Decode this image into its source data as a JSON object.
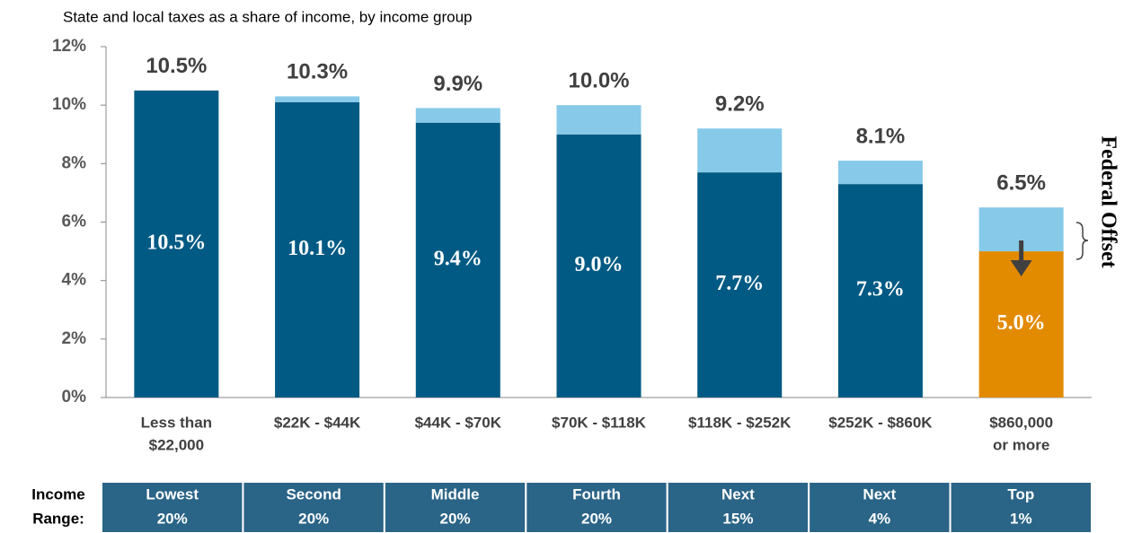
{
  "chart_data": {
    "type": "stacked_bar",
    "title": "State and local taxes as a share of income, by income group",
    "categories": [
      [
        "Less than",
        "$22,000"
      ],
      [
        "$22K - $44K"
      ],
      [
        "$44K - $70K"
      ],
      [
        "$70K - $118K"
      ],
      [
        "$118K - $252K"
      ],
      [
        "$252K - $860K"
      ],
      [
        "$860,000",
        "or more"
      ]
    ],
    "series": [
      {
        "colors": [
          "#005a84",
          "#005a84",
          "#005a84",
          "#005a84",
          "#005a84",
          "#005a84",
          "#e38b00"
        ],
        "values": [
          10.5,
          10.1,
          9.4,
          9.0,
          7.7,
          7.3,
          5.0
        ],
        "value_labels": [
          "10.5%",
          "10.1%",
          "9.4%",
          "9.0%",
          "7.7%",
          "7.3%",
          "5.0%"
        ]
      },
      {
        "name": "Federal Offset",
        "color": "#87c9e8",
        "values": [
          0,
          0.2,
          0.5,
          1.0,
          1.5,
          0.8,
          1.5
        ]
      }
    ],
    "totals": {
      "values": [
        10.5,
        10.3,
        9.9,
        10.0,
        9.2,
        8.1,
        6.5
      ],
      "value_labels": [
        "10.5%",
        "10.3%",
        "9.9%",
        "10.0%",
        "9.2%",
        "8.1%",
        "6.5%"
      ]
    },
    "ylim": [
      0,
      12
    ],
    "yticks": [
      {
        "value": 0,
        "label": "0%"
      },
      {
        "value": 2,
        "label": "2%"
      },
      {
        "value": 4,
        "label": "4%"
      },
      {
        "value": 6,
        "label": "6%"
      },
      {
        "value": 8,
        "label": "8%"
      },
      {
        "value": 10,
        "label": "10%"
      },
      {
        "value": 12,
        "label": "12%"
      }
    ],
    "income_range_label": [
      "Income",
      "Range:"
    ],
    "income_groups": [
      [
        "Lowest",
        "20%"
      ],
      [
        "Second",
        "20%"
      ],
      [
        "Middle",
        "20%"
      ],
      [
        "Fourth",
        "20%"
      ],
      [
        "Next",
        "15%"
      ],
      [
        "Next",
        "4%"
      ],
      [
        "Top",
        "1%"
      ]
    ],
    "table_color": "#2a6487"
  }
}
